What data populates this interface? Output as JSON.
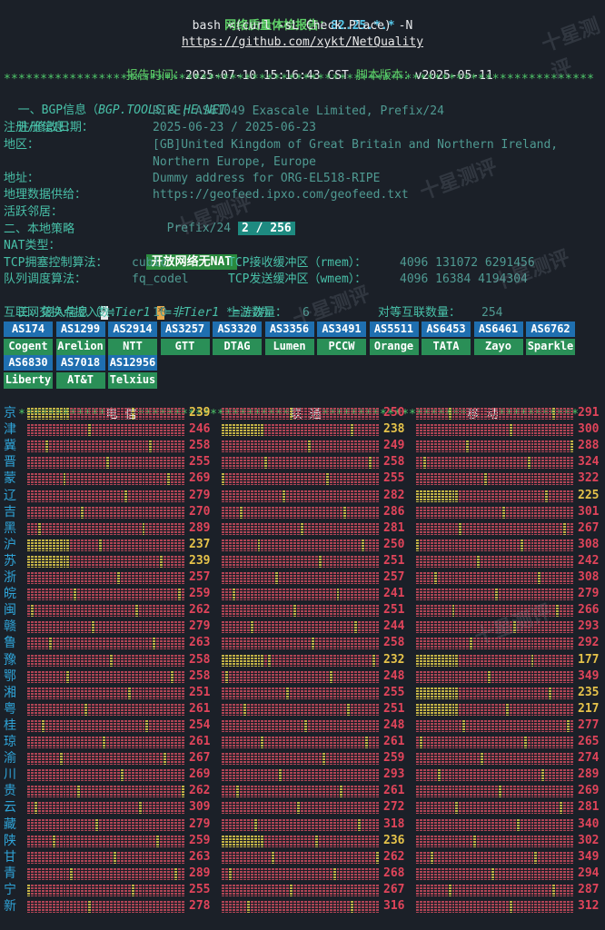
{
  "header": {
    "title_prefix": "网络质量体检报告：",
    "title_version": "82.25.*.*",
    "command": "bash <(curl -sL Check.Place) -N",
    "url": "https://github.com/xykt/NetQuality",
    "report_time_label": "报告时间：",
    "report_time": "2025-07-10 15:16:43 CST",
    "script_version_label": "脚本版本：",
    "script_version": "v2025-05-11"
  },
  "stars_full": "*********************************************************************************",
  "bgp": {
    "section": "一、BGP信息（",
    "section_src": "BGP.TOOLS & HE.NET",
    "section_end": "）",
    "reg_label": "注册信息：",
    "reg_value": "RIPE, AS61049 Exascale Limited, Prefix/24",
    "date_label": "注册/修改日期：",
    "date_value": "2025-06-23 / 2025-06-23",
    "region_label": "地区：",
    "region_value_1": "[GB]United Kingdom of Great Britain and Northern Ireland,",
    "region_value_2": "Northern Europe, Europe",
    "addr_label": "地址：",
    "addr_value": "Dummy address for ORG-EL518-RIPE",
    "geo_label": "地理数据供给：",
    "geo_value": "https://geofeed.ipxo.com/geofeed.txt",
    "neighbor_label": "活跃邻居：",
    "neighbor_value": "Prefix/24",
    "neighbor_badge": "2 / 256"
  },
  "local": {
    "section": "二、本地策略",
    "nat_label": "NAT类型：",
    "nat_badge": "开放网络无NAT",
    "cc_label": "TCP拥塞控制算法：",
    "cc_value": "cubic",
    "rmem_label": "TCP接收缓冲区（rmem）：",
    "rmem_value": "4096 131072 6291456",
    "qd_label": "队列调度算法：",
    "qd_value": "fq_codel",
    "wmem_label": "TCP发送缓冲区（wmem）：",
    "wmem_value": "4096 16384 4194304"
  },
  "access": {
    "section": "三、接入信息（",
    "tier1_mark": "*",
    "tier1_text": "=Tier1 ",
    "nontier1_mark": "*",
    "nontier1_text": "=非Tier1 ",
    "upstream_text": "*=上游",
    "section_end": "）",
    "ix_label": "互联网交换点接入数：",
    "ix_value": "10",
    "upstream_label": "上游数量：",
    "upstream_value": "6",
    "peer_label": "对等互联数量：",
    "peer_value": "254",
    "asns": [
      {
        "as": "AS174",
        "name": "Cogent"
      },
      {
        "as": "AS1299",
        "name": "Arelion"
      },
      {
        "as": "AS2914",
        "name": "NTT"
      },
      {
        "as": "AS3257",
        "name": "GTT"
      },
      {
        "as": "AS3320",
        "name": "DTAG"
      },
      {
        "as": "AS3356",
        "name": "Lumen"
      },
      {
        "as": "AS3491",
        "name": "PCCW"
      },
      {
        "as": "AS5511",
        "name": "Orange"
      },
      {
        "as": "AS6453",
        "name": "TATA"
      },
      {
        "as": "AS6461",
        "name": "Zayo"
      },
      {
        "as": "AS6762",
        "name": "Sparkle"
      },
      {
        "as": "AS6830",
        "name": "Liberty"
      },
      {
        "as": "AS7018",
        "name": "AT&T"
      },
      {
        "as": "AS12956",
        "name": "Telxius"
      }
    ]
  },
  "carriers_line": {
    "s1": "************",
    "telecom": "电 信",
    "s2": "*********************",
    "unicom": "联 通",
    "s3": "********************",
    "mobile": "移 动",
    "s4": "***********"
  },
  "colors": {
    "high": "#e0445a",
    "medium": "#e6c34a",
    "prov": "#2fa4d8"
  },
  "watermark": "十星测评",
  "latency": [
    {
      "p": "京",
      "t": 239,
      "u": 250,
      "m": 291
    },
    {
      "p": "津",
      "t": 246,
      "u": 238,
      "m": 300
    },
    {
      "p": "冀",
      "t": 258,
      "u": 249,
      "m": 288
    },
    {
      "p": "晋",
      "t": 255,
      "u": 258,
      "m": 324
    },
    {
      "p": "蒙",
      "t": 269,
      "u": 255,
      "m": 322
    },
    {
      "p": "辽",
      "t": 279,
      "u": 282,
      "m": 225
    },
    {
      "p": "吉",
      "t": 270,
      "u": 286,
      "m": 301
    },
    {
      "p": "黑",
      "t": 289,
      "u": 281,
      "m": 267
    },
    {
      "p": "沪",
      "t": 237,
      "u": 250,
      "m": 308
    },
    {
      "p": "苏",
      "t": 239,
      "u": 251,
      "m": 242
    },
    {
      "p": "浙",
      "t": 257,
      "u": 257,
      "m": 308
    },
    {
      "p": "皖",
      "t": 259,
      "u": 241,
      "m": 279
    },
    {
      "p": "闽",
      "t": 262,
      "u": 251,
      "m": 266
    },
    {
      "p": "赣",
      "t": 279,
      "u": 244,
      "m": 293
    },
    {
      "p": "鲁",
      "t": 263,
      "u": 258,
      "m": 292
    },
    {
      "p": "豫",
      "t": 258,
      "u": 232,
      "m": 177
    },
    {
      "p": "鄂",
      "t": 258,
      "u": 248,
      "m": 349
    },
    {
      "p": "湘",
      "t": 251,
      "u": 255,
      "m": 235
    },
    {
      "p": "粤",
      "t": 261,
      "u": 251,
      "m": 217
    },
    {
      "p": "桂",
      "t": 254,
      "u": 248,
      "m": 277
    },
    {
      "p": "琼",
      "t": 261,
      "u": 261,
      "m": 265
    },
    {
      "p": "渝",
      "t": 267,
      "u": 259,
      "m": 274
    },
    {
      "p": "川",
      "t": 269,
      "u": 293,
      "m": 289
    },
    {
      "p": "贵",
      "t": 262,
      "u": 261,
      "m": 269
    },
    {
      "p": "云",
      "t": 309,
      "u": 272,
      "m": 281
    },
    {
      "p": "藏",
      "t": 279,
      "u": 318,
      "m": 340
    },
    {
      "p": "陕",
      "t": 259,
      "u": 236,
      "m": 302
    },
    {
      "p": "甘",
      "t": 263,
      "u": 262,
      "m": 349
    },
    {
      "p": "青",
      "t": 289,
      "u": 268,
      "m": 294
    },
    {
      "p": "宁",
      "t": 255,
      "u": 267,
      "m": 287
    },
    {
      "p": "新",
      "t": 278,
      "u": 316,
      "m": 312
    }
  ]
}
